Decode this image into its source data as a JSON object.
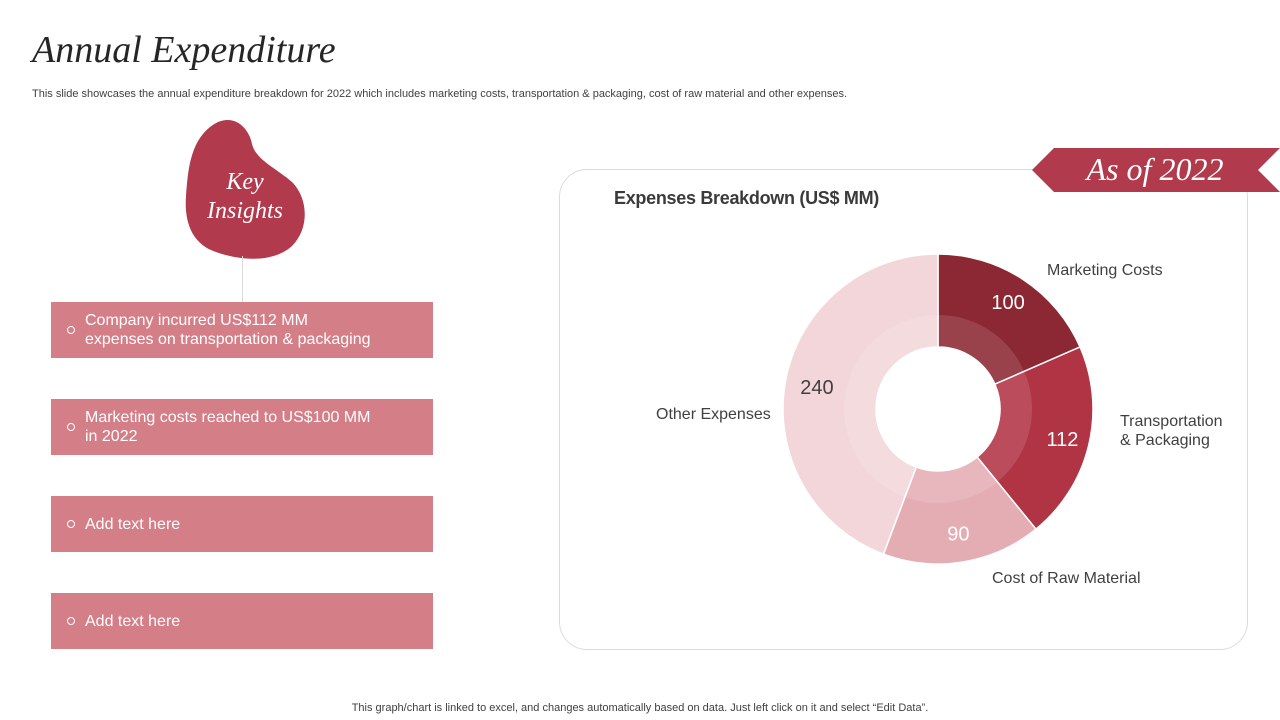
{
  "slide": {
    "title": "Annual Expenditure",
    "subtitle": "This slide showcases the annual expenditure breakdown for 2022 which includes marketing costs, transportation & packaging, cost of raw material and other expenses.",
    "footer": "This graph/chart is linked to excel,  and changes automatically based on data. Just left click on it and select “Edit Data”."
  },
  "key_insights": {
    "heading_line1": "Key",
    "heading_line2": "Insights",
    "items": [
      {
        "line1": "Company incurred US$112 MM",
        "line2": "expenses on transportation & packaging"
      },
      {
        "line1": "Marketing costs reached to US$100 MM",
        "line2": "in 2022"
      },
      {
        "line1": "Add text here",
        "line2": ""
      },
      {
        "line1": "Add text here",
        "line2": ""
      }
    ]
  },
  "badge": {
    "label": "As of  2022"
  },
  "colors": {
    "accent": "#b13a4c",
    "insight_box": "#d47e88",
    "marketing": "#8b2834",
    "transportation": "#b13445",
    "raw_material": "#e4adb4",
    "other": "#f2d6da"
  },
  "chart_data": {
    "type": "pie",
    "style": "donut",
    "title": "Expenses Breakdown (US$ MM)",
    "categories": [
      "Marketing Costs",
      "Transportation & Packaging",
      "Cost of Raw Material",
      "Other Expenses"
    ],
    "values": [
      100,
      112,
      90,
      240
    ],
    "labels_multiline": [
      [
        "Marketing Costs"
      ],
      [
        "Transportation",
        "& Packaging"
      ],
      [
        "Cost of Raw Material"
      ],
      [
        "Other  Expenses"
      ]
    ],
    "start_angle": "12 o'clock",
    "direction": "clockwise"
  }
}
